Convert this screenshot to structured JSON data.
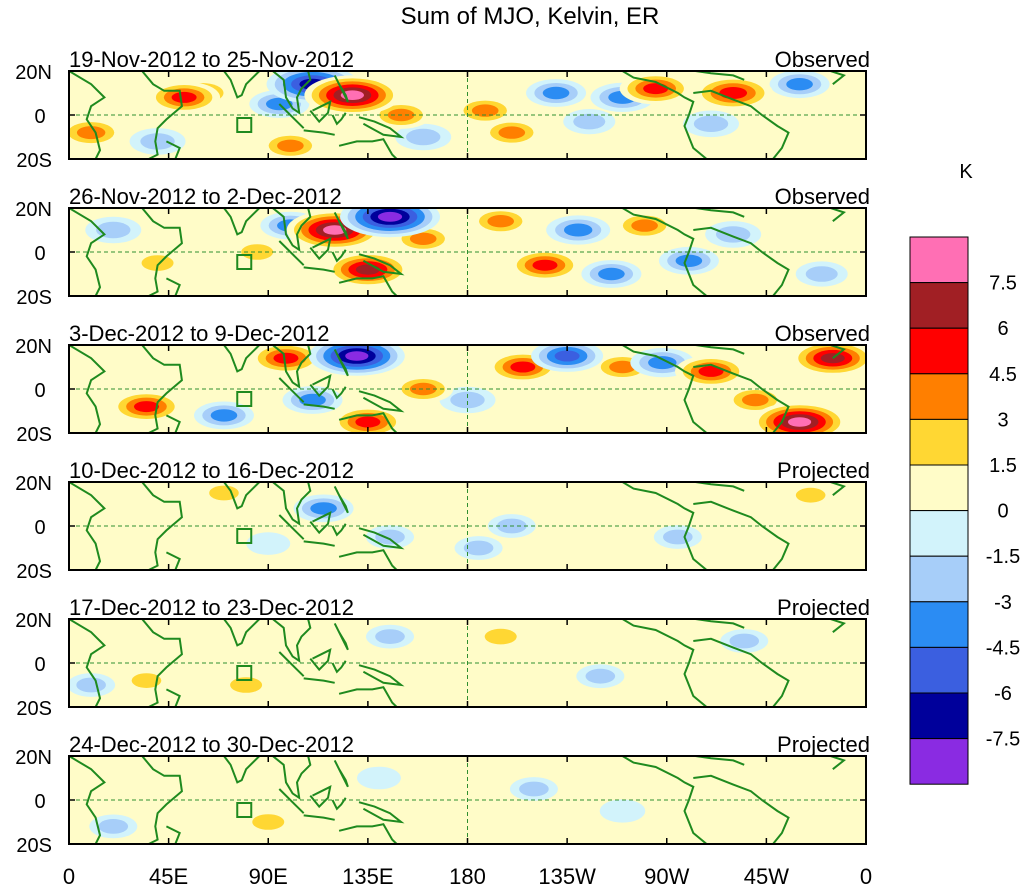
{
  "chart_data": {
    "type": "heatmap",
    "title": "Sum of MJO, Kelvin, ER",
    "units": "K",
    "x_ticks": [
      "0",
      "45E",
      "90E",
      "135E",
      "180",
      "135W",
      "90W",
      "45W",
      "0"
    ],
    "y_ticks": [
      "20N",
      "0",
      "20S"
    ],
    "xlim_deg": [
      0,
      360
    ],
    "ylim_deg": [
      -20,
      20
    ],
    "panels": [
      {
        "period": "19-Nov-2012 to 25-Nov-2012",
        "kind": "Observed",
        "blobs": [
          [
            52,
            8,
            4.5
          ],
          [
            10,
            -8,
            3.5
          ],
          [
            95,
            5,
            -3
          ],
          [
            110,
            14,
            -7
          ],
          [
            128,
            9,
            7.5
          ],
          [
            150,
            0,
            3
          ],
          [
            188,
            2,
            3
          ],
          [
            200,
            -8,
            3
          ],
          [
            220,
            10,
            -3
          ],
          [
            235,
            -3,
            -2
          ],
          [
            250,
            8,
            -3.5
          ],
          [
            265,
            12,
            4.5
          ],
          [
            290,
            -4,
            -2.5
          ],
          [
            300,
            10,
            5.5
          ],
          [
            330,
            14,
            -3
          ],
          [
            100,
            -14,
            3
          ],
          [
            160,
            -10,
            -2.5
          ],
          [
            40,
            -12,
            -2.5
          ],
          [
            60,
            10,
            3
          ]
        ]
      },
      {
        "period": "26-Nov-2012 to 2-Dec-2012",
        "kind": "Observed",
        "blobs": [
          [
            120,
            10,
            7.5
          ],
          [
            135,
            -8,
            6
          ],
          [
            145,
            16,
            -8
          ],
          [
            160,
            6,
            3
          ],
          [
            195,
            14,
            3
          ],
          [
            215,
            -6,
            4.5
          ],
          [
            230,
            10,
            -3.5
          ],
          [
            245,
            -10,
            -3
          ],
          [
            260,
            12,
            3
          ],
          [
            280,
            -4,
            -3
          ],
          [
            20,
            10,
            -2.5
          ],
          [
            40,
            -5,
            2
          ],
          [
            85,
            0,
            2
          ],
          [
            300,
            8,
            -2.5
          ],
          [
            340,
            -10,
            -2
          ],
          [
            100,
            12,
            -3
          ]
        ]
      },
      {
        "period": "3-Dec-2012 to 9-Dec-2012",
        "kind": "Observed",
        "blobs": [
          [
            98,
            14,
            4.5
          ],
          [
            130,
            15,
            -7.5
          ],
          [
            160,
            0,
            3
          ],
          [
            205,
            10,
            4.5
          ],
          [
            225,
            15,
            -4.5
          ],
          [
            250,
            10,
            3
          ],
          [
            268,
            12,
            -3.5
          ],
          [
            290,
            8,
            4.5
          ],
          [
            330,
            -15,
            7.5
          ],
          [
            345,
            14,
            6
          ],
          [
            35,
            -8,
            4.5
          ],
          [
            70,
            -12,
            -3
          ],
          [
            135,
            -15,
            4.5
          ],
          [
            110,
            -5,
            -3
          ],
          [
            180,
            -5,
            -2.5
          ],
          [
            310,
            -5,
            3
          ]
        ]
      },
      {
        "period": "10-Dec-2012 to 16-Dec-2012",
        "kind": "Projected",
        "blobs": [
          [
            70,
            15,
            1.5
          ],
          [
            115,
            8,
            -3
          ],
          [
            145,
            -5,
            -1.5
          ],
          [
            200,
            0,
            -1.5
          ],
          [
            275,
            -5,
            -1.5
          ],
          [
            300,
            10,
            1
          ],
          [
            335,
            14,
            1.5
          ],
          [
            185,
            -10,
            -1.5
          ],
          [
            90,
            -8,
            -1
          ]
        ]
      },
      {
        "period": "17-Dec-2012 to 23-Dec-2012",
        "kind": "Projected",
        "blobs": [
          [
            195,
            12,
            2
          ],
          [
            145,
            12,
            -1.5
          ],
          [
            240,
            -6,
            -1.5
          ],
          [
            80,
            -10,
            2
          ],
          [
            35,
            -8,
            1.5
          ],
          [
            305,
            10,
            -1.5
          ],
          [
            10,
            -10,
            -1.5
          ],
          [
            180,
            -8,
            1
          ]
        ]
      },
      {
        "period": "24-Dec-2012 to 30-Dec-2012",
        "kind": "Projected",
        "blobs": [
          [
            90,
            -10,
            2
          ],
          [
            140,
            10,
            -1
          ],
          [
            210,
            5,
            -1.5
          ],
          [
            250,
            -5,
            -1.2
          ],
          [
            310,
            8,
            1
          ],
          [
            50,
            12,
            1
          ],
          [
            20,
            -12,
            -1.5
          ]
        ]
      }
    ],
    "colorbar": {
      "labels": [
        "7.5",
        "6",
        "4.5",
        "3",
        "1.5",
        "0",
        "-1.5",
        "-3",
        "-4.5",
        "-6",
        "-7.5"
      ],
      "colors": [
        "#ff6fb4",
        "#a11f24",
        "#ff0000",
        "#ff7f00",
        "#ffd733",
        "#fffcc8",
        "#d2f3fb",
        "#a7cef9",
        "#2b8cf3",
        "#3b5fe0",
        "#00009b",
        "#8a2be2"
      ]
    }
  }
}
